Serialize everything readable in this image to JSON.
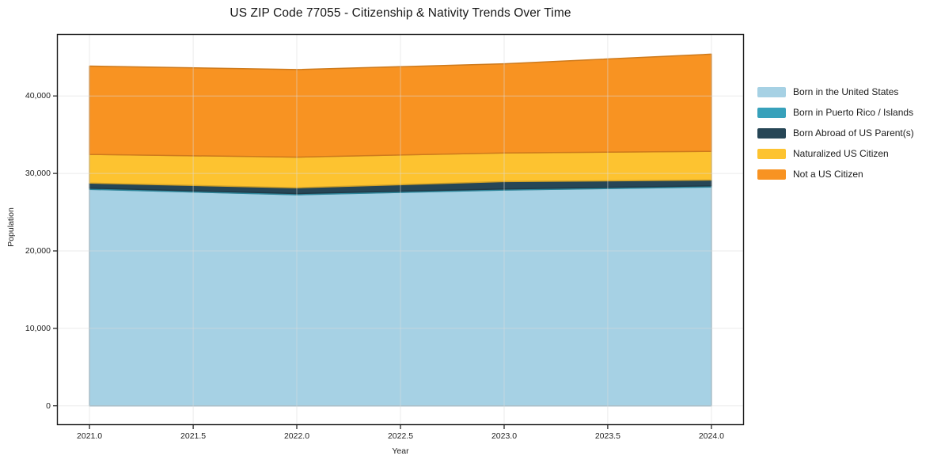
{
  "chart_data": {
    "type": "area",
    "stacked": true,
    "title": "US ZIP Code 77055 - Citizenship & Nativity Trends Over Time",
    "xlabel": "Year",
    "ylabel": "Population",
    "x": [
      2021,
      2022,
      2023,
      2024
    ],
    "series": [
      {
        "name": "Born in the United States",
        "color": "#a6d1e4",
        "values": [
          27950,
          27250,
          27850,
          28250
        ]
      },
      {
        "name": "Born in Puerto Rico / Islands",
        "color": "#37a1bb",
        "values": [
          150,
          150,
          150,
          150
        ]
      },
      {
        "name": "Born Abroad of US Parent(s)",
        "color": "#264656",
        "values": [
          650,
          750,
          950,
          750
        ]
      },
      {
        "name": "Naturalized US Citizen",
        "color": "#fdc330",
        "values": [
          3700,
          3950,
          3700,
          3700
        ]
      },
      {
        "name": "Not a US Citizen",
        "color": "#f89322",
        "values": [
          11400,
          11300,
          11500,
          12550
        ]
      }
    ],
    "totals": [
      43850,
      43400,
      44150,
      45400
    ],
    "xticks": {
      "values": [
        2021.0,
        2021.5,
        2022.0,
        2022.5,
        2023.0,
        2023.5,
        2024.0
      ],
      "labels": [
        "2021.0",
        "2021.5",
        "2022.0",
        "2022.5",
        "2023.0",
        "2023.5",
        "2024.0"
      ]
    },
    "yticks": {
      "values": [
        0,
        10000,
        20000,
        30000,
        40000
      ],
      "labels": [
        "0",
        "10,000",
        "20,000",
        "30,000",
        "40,000"
      ]
    },
    "xlim": [
      2020.845,
      2024.155
    ],
    "ylim": [
      -2430,
      47940
    ],
    "grid": true,
    "legend_position": "right outside",
    "axis_color": "#1a1a1a",
    "grid_color": "#dbdbdb",
    "grid_alpha": 0.55
  }
}
